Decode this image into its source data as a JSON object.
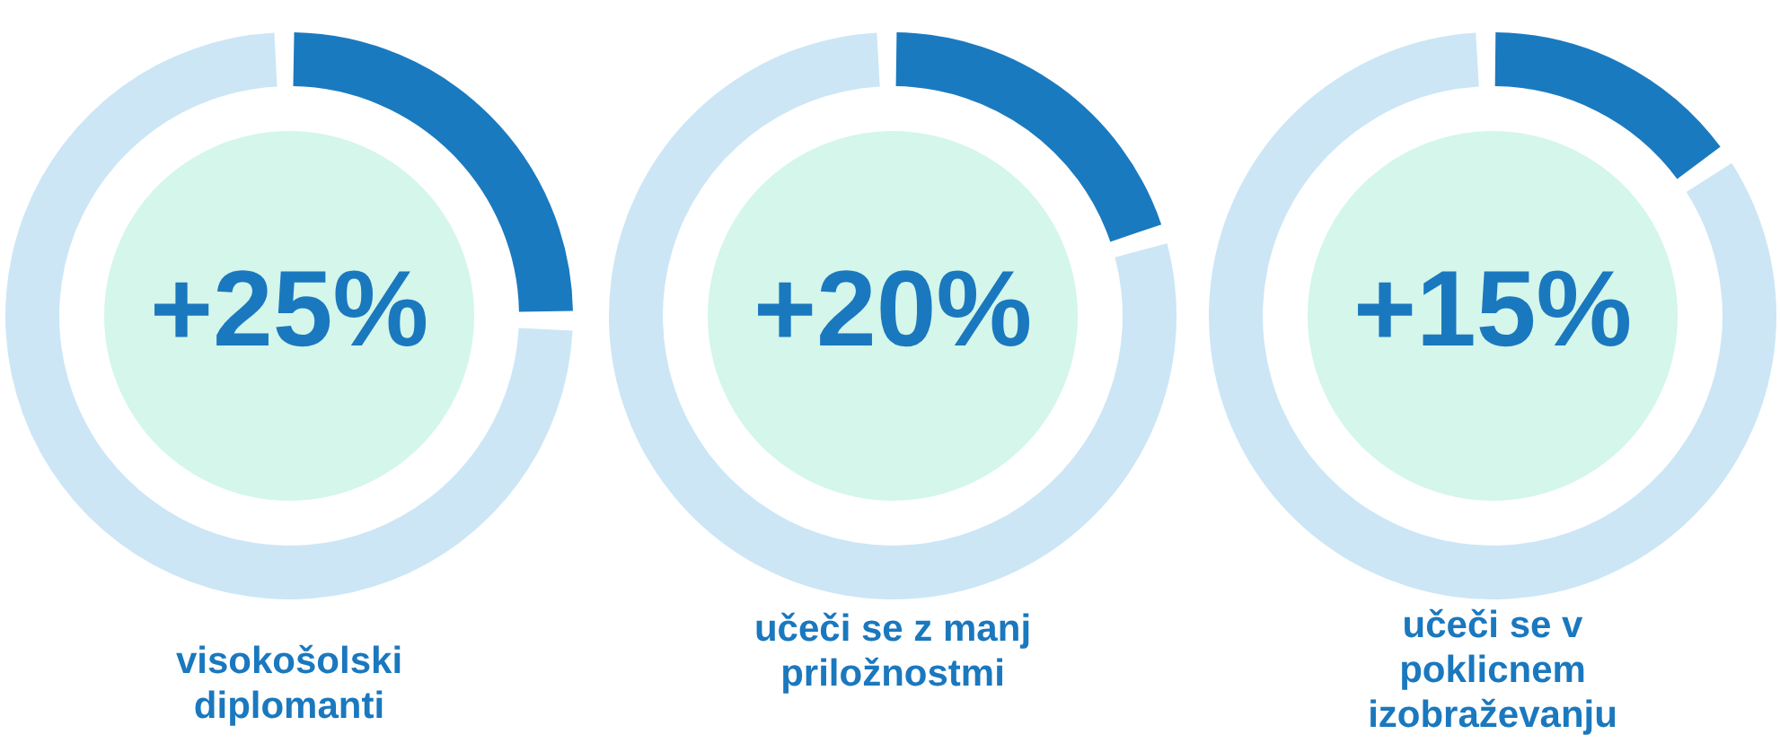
{
  "chart_data": [
    {
      "type": "donut",
      "title": "visokošolski diplomanti",
      "categories": [
        null,
        null
      ],
      "values": [
        25,
        75
      ],
      "colors": [
        "#1a7abf",
        "#cce6f6"
      ],
      "annotations": [
        "+25%"
      ]
    },
    {
      "type": "donut",
      "title": "učeči se z manj priložnostmi",
      "categories": [
        null,
        null
      ],
      "values": [
        20,
        80
      ],
      "colors": [
        "#1a7abf",
        "#cce6f6"
      ],
      "annotations": [
        "+20%"
      ]
    },
    {
      "type": "donut",
      "title": "učeči se v poklicnem izobraževanju",
      "categories": [
        null,
        null
      ],
      "values": [
        15,
        85
      ],
      "colors": [
        "#1a7abf",
        "#cce6f6"
      ],
      "annotations": [
        "+15%"
      ]
    }
  ]
}
